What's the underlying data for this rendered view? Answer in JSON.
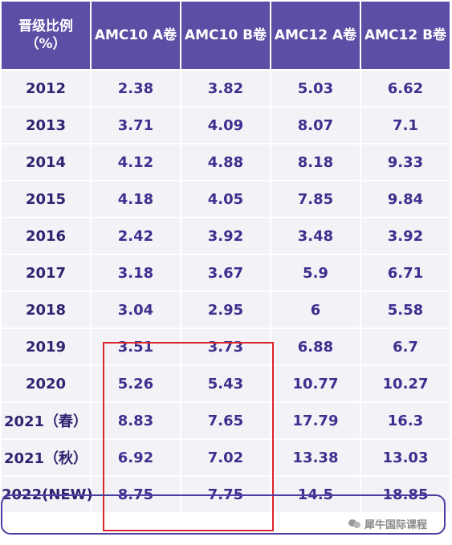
{
  "table": {
    "headers": [
      "晋级比例（%）",
      "AMC10 A卷",
      "AMC10 B卷",
      "AMC12 A卷",
      "AMC12 B卷"
    ],
    "rows": [
      [
        "2012",
        "2.38",
        "3.82",
        "5.03",
        "6.62"
      ],
      [
        "2013",
        "3.71",
        "4.09",
        "8.07",
        "7.1"
      ],
      [
        "2014",
        "4.12",
        "4.88",
        "8.18",
        "9.33"
      ],
      [
        "2015",
        "4.18",
        "4.05",
        "7.85",
        "9.84"
      ],
      [
        "2016",
        "2.42",
        "3.92",
        "3.48",
        "3.92"
      ],
      [
        "2017",
        "3.18",
        "3.67",
        "5.9",
        "6.71"
      ],
      [
        "2018",
        "3.04",
        "2.95",
        "6",
        "5.58"
      ],
      [
        "2019",
        "3.51",
        "3.73",
        "6.88",
        "6.7"
      ],
      [
        "2020",
        "5.26",
        "5.43",
        "10.77",
        "10.27"
      ],
      [
        "2021（春）",
        "8.83",
        "7.65",
        "17.79",
        "16.3"
      ],
      [
        "2021（秋）",
        "6.92",
        "7.02",
        "13.38",
        "13.03"
      ],
      [
        "2022(NEW)",
        "8.75",
        "7.75",
        "14.5",
        "18.85"
      ]
    ]
  },
  "watermark": {
    "text": "犀牛国际课程",
    "icon": "wechat-icon"
  },
  "colors": {
    "header_bg": "#5a4fa5",
    "cell_bg": "#f3f3f7",
    "text": "#3e2f8f",
    "highlight_red": "#d9262c",
    "highlight_purple": "#4a3fa0"
  }
}
